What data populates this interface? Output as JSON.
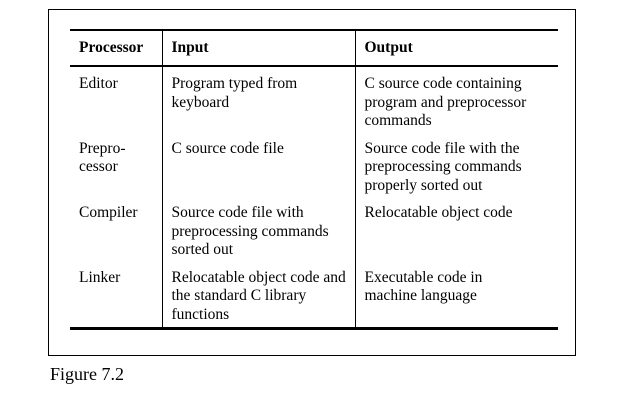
{
  "table": {
    "headers": [
      "Processor",
      "Input",
      "Output"
    ],
    "rows": [
      {
        "processor": "Editor",
        "input": "Program typed from keyboard",
        "output": "C source code containing program and preprocessor commands"
      },
      {
        "processor": "Prepro-\ncessor",
        "input": "C source code file",
        "output": "Source code file with the preprocessing commands properly sorted out"
      },
      {
        "processor": "Compiler",
        "input": "Source code file with preprocessing commands sorted out",
        "output": "Relocatable object code"
      },
      {
        "processor": "Linker",
        "input": "Relocatable object code and the standard C library functions",
        "output": "Executable code in machine language"
      }
    ]
  },
  "caption": "Figure 7.2"
}
